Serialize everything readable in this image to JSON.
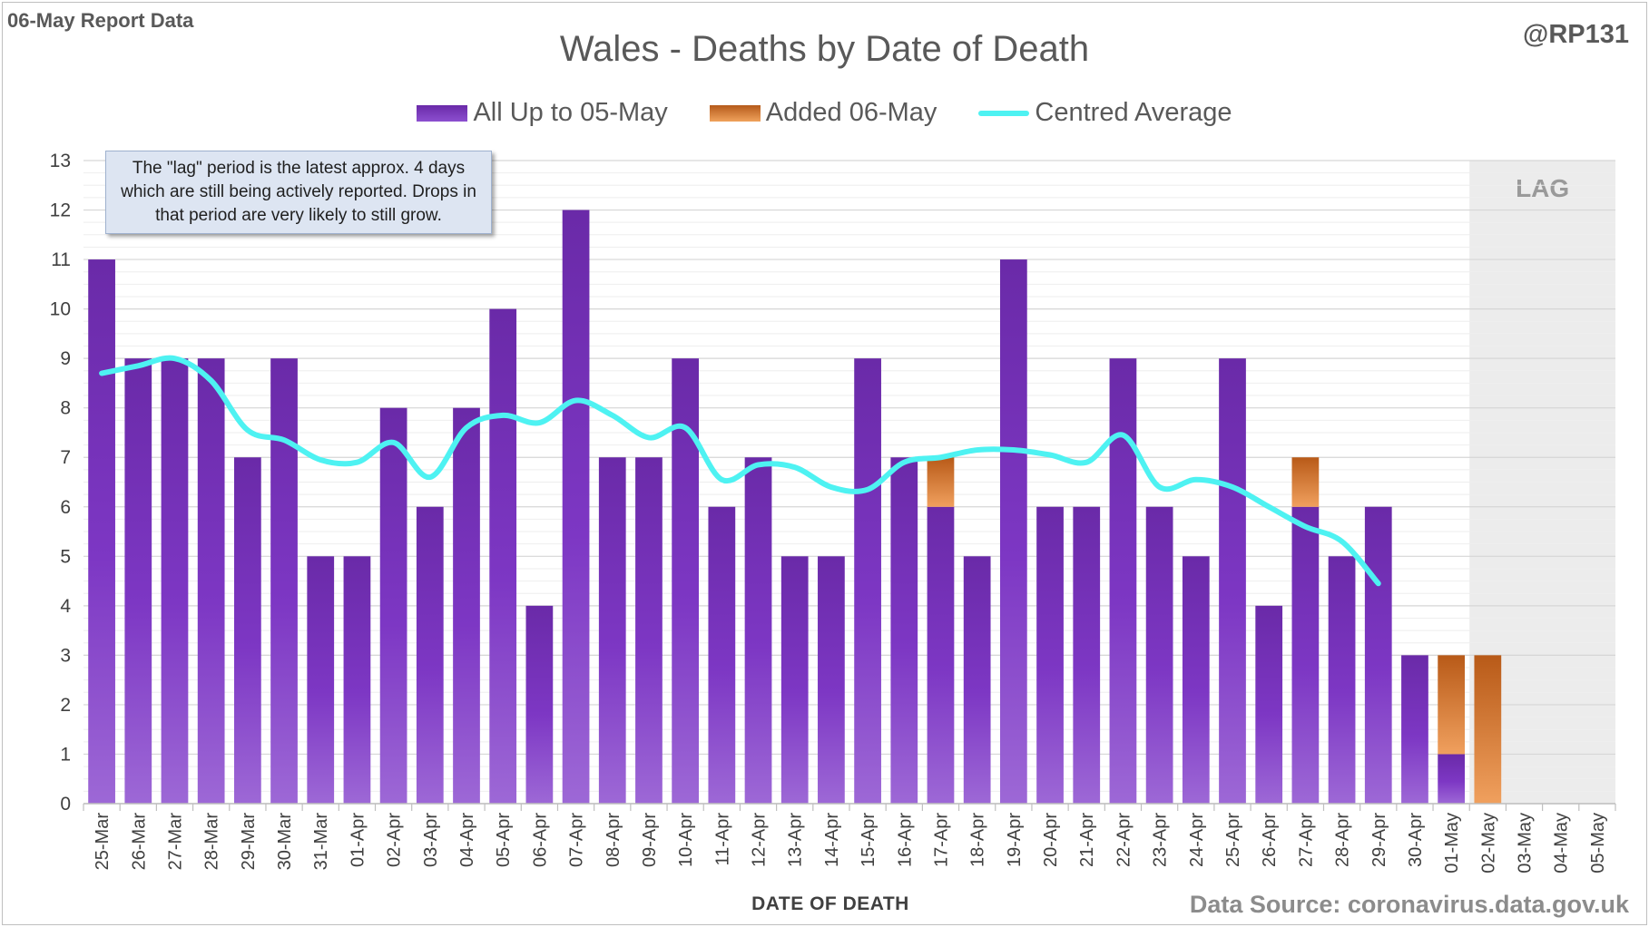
{
  "header": {
    "report_label": "06-May Report Data",
    "handle": "@RP131",
    "source": "Data Source: coronavirus.data.gov.uk"
  },
  "annotation": {
    "text": "The \"lag\" period is the latest approx. 4 days which are still being actively reported.  Drops in that period are very likely to still grow."
  },
  "chart_data": {
    "type": "bar",
    "stacked": true,
    "title": "Wales - Deaths by Date of Death",
    "xlabel": "DATE OF DEATH",
    "ylabel": "",
    "ylim": [
      0,
      13
    ],
    "yticks": [
      0,
      1,
      2,
      3,
      4,
      5,
      6,
      7,
      8,
      9,
      10,
      11,
      12,
      13
    ],
    "grid": true,
    "legend_position": "top",
    "categories": [
      "25-Mar",
      "26-Mar",
      "27-Mar",
      "28-Mar",
      "29-Mar",
      "30-Mar",
      "31-Mar",
      "01-Apr",
      "02-Apr",
      "03-Apr",
      "04-Apr",
      "05-Apr",
      "06-Apr",
      "07-Apr",
      "08-Apr",
      "09-Apr",
      "10-Apr",
      "11-Apr",
      "12-Apr",
      "13-Apr",
      "14-Apr",
      "15-Apr",
      "16-Apr",
      "17-Apr",
      "18-Apr",
      "19-Apr",
      "20-Apr",
      "21-Apr",
      "22-Apr",
      "23-Apr",
      "24-Apr",
      "25-Apr",
      "26-Apr",
      "27-Apr",
      "28-Apr",
      "29-Apr",
      "30-Apr",
      "01-May",
      "02-May",
      "03-May",
      "04-May",
      "05-May"
    ],
    "series": [
      {
        "name": "All Up to 05-May",
        "kind": "bar",
        "color": "#7a3cc0",
        "values": [
          11,
          9,
          9,
          9,
          7,
          9,
          5,
          5,
          8,
          6,
          8,
          10,
          4,
          12,
          7,
          7,
          9,
          6,
          7,
          5,
          5,
          9,
          7,
          6,
          5,
          11,
          6,
          6,
          9,
          6,
          5,
          9,
          4,
          6,
          5,
          6,
          3,
          1,
          0,
          0,
          0,
          0
        ]
      },
      {
        "name": "Added 06-May",
        "kind": "bar",
        "color": "#d9742f",
        "values": [
          0,
          0,
          0,
          0,
          0,
          0,
          0,
          0,
          0,
          0,
          0,
          0,
          0,
          0,
          0,
          0,
          0,
          0,
          0,
          0,
          0,
          0,
          0,
          1,
          0,
          0,
          0,
          0,
          0,
          0,
          0,
          0,
          0,
          1,
          0,
          0,
          0,
          2,
          3,
          0,
          0,
          0
        ]
      },
      {
        "name": "Centred Average",
        "kind": "line",
        "color": "#4ef2f2",
        "values": [
          8.7,
          8.85,
          9.0,
          8.55,
          7.55,
          7.35,
          6.95,
          6.9,
          7.3,
          6.6,
          7.6,
          7.85,
          7.7,
          8.15,
          7.85,
          7.4,
          7.6,
          6.55,
          6.85,
          6.8,
          6.4,
          6.35,
          6.9,
          7.0,
          7.15,
          7.15,
          7.05,
          6.9,
          7.45,
          6.4,
          6.55,
          6.4,
          6.0,
          5.6,
          5.3,
          4.45,
          null,
          null,
          null,
          null,
          null,
          null
        ]
      }
    ],
    "lag_region": {
      "label": "LAG",
      "from": "02-May",
      "to": "05-May"
    }
  }
}
